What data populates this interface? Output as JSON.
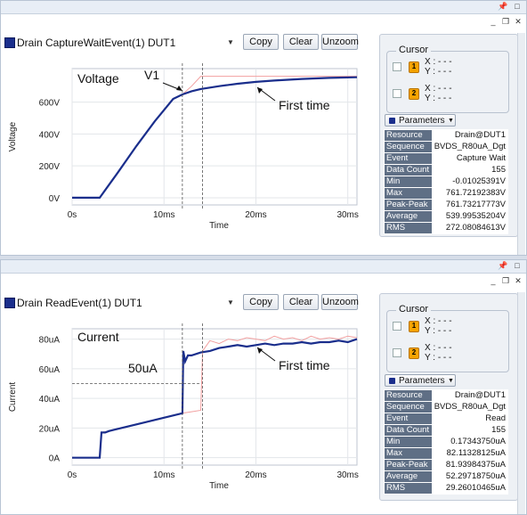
{
  "icons": {
    "pin": "pin-icon",
    "maximize": "maximize-icon",
    "close": "close-icon",
    "restore": "restore-icon",
    "dropdown": "chevron-down-icon"
  },
  "colors": {
    "trace": "#1a2e8c",
    "reference": "#f2a0a0",
    "header_cell": "#5f6f85",
    "cursor_badge": "#f5a300"
  },
  "toolbar": {
    "copy_label": "Copy",
    "clear_label": "Clear",
    "unzoom_label": "Unzoom"
  },
  "cursor": {
    "title": "Cursor",
    "badge1": "1",
    "badge2": "2",
    "x_text": "X : - - -",
    "y_text": "Y : - - -"
  },
  "parameters_label": "Parameters",
  "panels": [
    {
      "trace_name": "Drain CaptureWaitEvent(1) DUT1",
      "chart_data": {
        "type": "line",
        "ylabel": "Voltage",
        "xlabel": "Time",
        "x_ticks": [
          "0s",
          "10ms",
          "20ms",
          "30ms"
        ],
        "y_ticks": [
          "0V",
          "200V",
          "400V",
          "600V"
        ],
        "xlim": [
          0,
          31
        ],
        "ylim": [
          -45,
          810
        ],
        "annotations": {
          "title": "Voltage",
          "marker": "V1",
          "first_time": "First time"
        },
        "series": [
          {
            "x": [
              0,
              3,
              5,
              7,
              9,
              11,
              12,
              13,
              14,
              16,
              18,
              20,
              22,
              25,
              28,
              31
            ],
            "y": [
              0,
              0,
              160,
              325,
              480,
              620,
              648,
              668,
              682,
              700,
              715,
              727,
              735,
              745,
              752,
              756
            ]
          },
          {
            "x": [
              0,
              3,
              5,
              7,
              9,
              11,
              12,
              13,
              14,
              16,
              20,
              25,
              31
            ],
            "y": [
              0,
              0,
              160,
              325,
              480,
              620,
              648,
              700,
              762,
              762,
              762,
              762,
              762
            ]
          }
        ]
      },
      "params": [
        [
          "Resource",
          "Drain@DUT1"
        ],
        [
          "Sequence",
          "BVDS_R80uA_Dgt"
        ],
        [
          "Event",
          "Capture Wait"
        ],
        [
          "Data Count",
          "155"
        ],
        [
          "Min",
          "-0.01025391V"
        ],
        [
          "Max",
          "761.72192383V"
        ],
        [
          "Peak-Peak",
          "761.73217773V"
        ],
        [
          "Average",
          "539.99535204V"
        ],
        [
          "RMS",
          "272.08084613V"
        ]
      ]
    },
    {
      "trace_name": "Drain ReadEvent(1) DUT1",
      "chart_data": {
        "type": "line",
        "ylabel": "Current",
        "xlabel": "Time",
        "x_ticks": [
          "0s",
          "10ms",
          "20ms",
          "30ms"
        ],
        "y_ticks": [
          "0A",
          "20uA",
          "40uA",
          "60uA",
          "80uA"
        ],
        "xlim": [
          0,
          31
        ],
        "ylim": [
          -5,
          87
        ],
        "annotations": {
          "title": "Current",
          "marker": "50uA",
          "first_time": "First time"
        },
        "series": [
          {
            "x": [
              0,
              3,
              3.2,
              3.6,
              4,
              6,
              8,
              10,
              12,
              12.1,
              12.3,
              12.6,
              13,
              14,
              15,
              16,
              17,
              18,
              19,
              20,
              21,
              22,
              23,
              24,
              25,
              26,
              27,
              28,
              29,
              30,
              31
            ],
            "y": [
              0,
              0,
              17,
              17,
              18,
              21,
              24,
              27,
              30,
              72,
              65,
              69,
              69,
              71,
              72,
              74,
              75,
              76,
              75,
              76,
              77,
              76,
              77,
              77,
              78,
              77,
              78,
              78,
              79,
              78,
              80
            ]
          },
          {
            "x": [
              0,
              3,
              3.2,
              4,
              6,
              8,
              10,
              12,
              13,
              14,
              14.2,
              15,
              16,
              17,
              18,
              19,
              20,
              21,
              22,
              23,
              24,
              25,
              26,
              27,
              28,
              29,
              30,
              31
            ],
            "y": [
              0,
              0,
              17,
              18,
              21,
              24,
              27,
              30,
              31,
              32,
              72,
              79,
              77,
              80,
              79,
              81,
              80,
              79,
              82,
              80,
              81,
              79,
              82,
              80,
              81,
              80,
              82,
              81
            ]
          }
        ]
      },
      "params": [
        [
          "Resource",
          "Drain@DUT1"
        ],
        [
          "Sequence",
          "BVDS_R80uA_Dgt"
        ],
        [
          "Event",
          "Read"
        ],
        [
          "Data Count",
          "155"
        ],
        [
          "Min",
          "0.17343750uA"
        ],
        [
          "Max",
          "82.11328125uA"
        ],
        [
          "Peak-Peak",
          "81.93984375uA"
        ],
        [
          "Average",
          "52.29718750uA"
        ],
        [
          "RMS",
          "29.26010465uA"
        ]
      ]
    }
  ]
}
